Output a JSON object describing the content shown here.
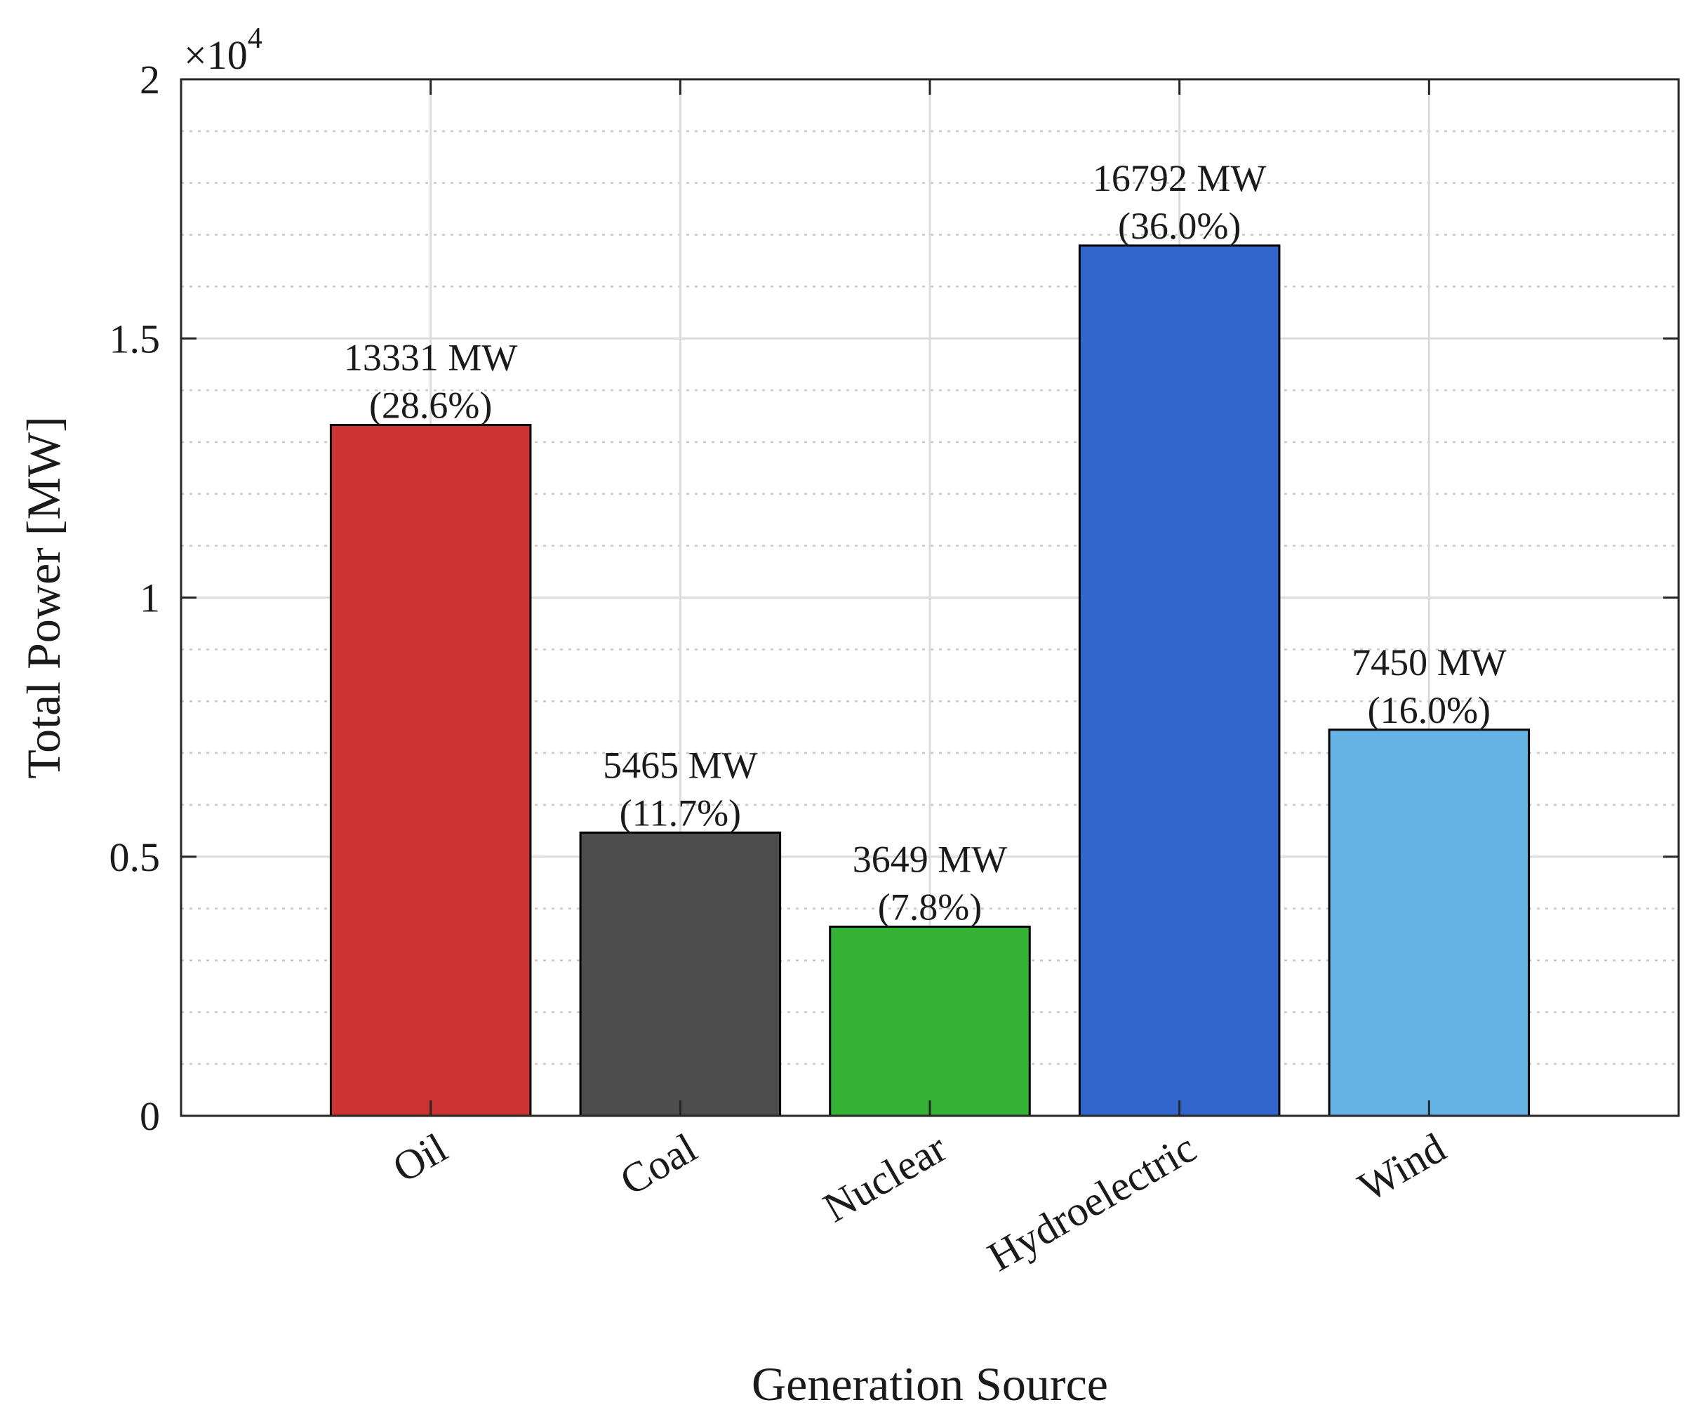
{
  "chart_data": {
    "type": "bar",
    "categories": [
      "Oil",
      "Coal",
      "Nuclear",
      "Hydroelectric",
      "Wind"
    ],
    "values": [
      13331,
      5465,
      3649,
      16792,
      7450
    ],
    "data_labels": [
      [
        "13331 MW",
        "(28.6%)"
      ],
      [
        "5465 MW",
        "(11.7%)"
      ],
      [
        "3649 MW",
        "(7.8%)"
      ],
      [
        "16792 MW",
        "(36.0%)"
      ],
      [
        "7450 MW",
        "(16.0%)"
      ]
    ],
    "bar_colors": [
      "#cc3333",
      "#4d4d4d",
      "#33b233",
      "#3366cc",
      "#66b3e5"
    ],
    "bar_edge_color": "#000000",
    "title": "",
    "xlabel": "Generation Source",
    "ylabel": "Total Power [MW]",
    "ylim": [
      0,
      20000
    ],
    "yticks": [
      0,
      5000,
      10000,
      15000,
      20000
    ],
    "ytick_labels": [
      "0",
      "0.5",
      "1",
      "1.5",
      "2"
    ],
    "y_minor_step": 1000,
    "y_exponent_label": "×10",
    "y_exponent_power": "4",
    "grid": true,
    "minor_grid": true,
    "x_tick_rotation_deg": 30
  }
}
